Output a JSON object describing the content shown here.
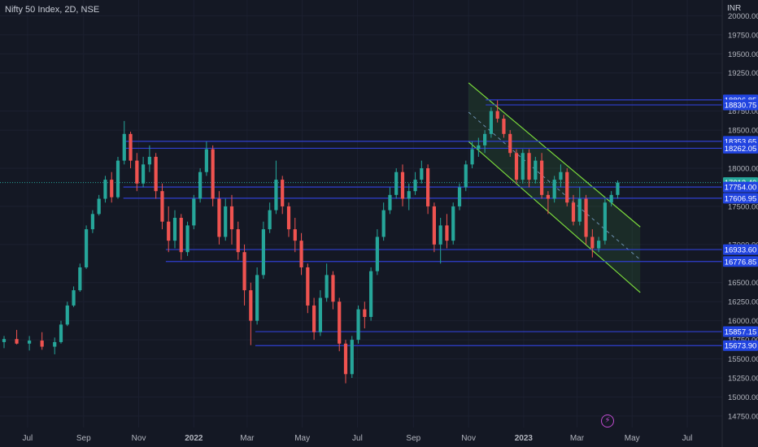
{
  "header": {
    "title": "Nifty 50 Index, 2D, NSE",
    "currency": "INR"
  },
  "icons": {
    "lightning": "lightning-icon"
  },
  "colors": {
    "background": "#141824",
    "up": "#26a69a",
    "down": "#ef5350",
    "level_line": "#2f3fd0",
    "label_bg": "#2144e0",
    "channel": "#7bdc3c",
    "current_price_bg": "#26a69a"
  },
  "chart_data": {
    "type": "candlestick",
    "title": "Nifty 50 Index, 2D, NSE",
    "y_unit": "INR",
    "ylim": [
      14600,
      20100
    ],
    "y_ticks": [
      {
        "value": 20000,
        "label": "20000.00"
      },
      {
        "value": 19750,
        "label": "19750.00"
      },
      {
        "value": 19500,
        "label": "19500.00"
      },
      {
        "value": 19250,
        "label": "19250.00"
      },
      {
        "value": 18750,
        "label": "18750.00"
      },
      {
        "value": 18500,
        "label": "18500.00"
      },
      {
        "value": 18000,
        "label": "18000.00"
      },
      {
        "value": 17500,
        "label": "17500.00"
      },
      {
        "value": 17000,
        "label": "17000.00"
      },
      {
        "value": 16500,
        "label": "16500.00"
      },
      {
        "value": 16250,
        "label": "16250.00"
      },
      {
        "value": 16000,
        "label": "16000.00"
      },
      {
        "value": 15750,
        "label": "15750.00"
      },
      {
        "value": 15500,
        "label": "15500.00"
      },
      {
        "value": 15250,
        "label": "15250.00"
      },
      {
        "value": 15000,
        "label": "15000.00"
      },
      {
        "value": 14750,
        "label": "14750.00"
      }
    ],
    "x_ticks": [
      {
        "date": "2021-07-01",
        "label": "Jul",
        "bold": false
      },
      {
        "date": "2021-09-01",
        "label": "Sep",
        "bold": false
      },
      {
        "date": "2021-11-01",
        "label": "Nov",
        "bold": false
      },
      {
        "date": "2022-01-01",
        "label": "2022",
        "bold": true
      },
      {
        "date": "2022-03-01",
        "label": "Mar",
        "bold": false
      },
      {
        "date": "2022-05-01",
        "label": "May",
        "bold": false
      },
      {
        "date": "2022-07-01",
        "label": "Jul",
        "bold": false
      },
      {
        "date": "2022-09-01",
        "label": "Sep",
        "bold": false
      },
      {
        "date": "2022-11-01",
        "label": "Nov",
        "bold": false
      },
      {
        "date": "2023-01-01",
        "label": "2023",
        "bold": true
      },
      {
        "date": "2023-03-01",
        "label": "Mar",
        "bold": false
      },
      {
        "date": "2023-05-01",
        "label": "May",
        "bold": false
      },
      {
        "date": "2023-07-01",
        "label": "Jul",
        "bold": false
      }
    ],
    "price_levels": [
      {
        "value": 18896.85,
        "label": "18896.85",
        "from": "2022-11-20",
        "style": "level"
      },
      {
        "value": 18830.75,
        "label": "18830.75",
        "from": "2022-11-20",
        "style": "level"
      },
      {
        "value": 18353.65,
        "label": "18353.65",
        "from": "2021-10-15",
        "style": "level"
      },
      {
        "value": 18262.05,
        "label": "18262.05",
        "from": "2021-10-15",
        "style": "level"
      },
      {
        "value": 17812.4,
        "label": "17812.40",
        "from": "2021-06-10",
        "style": "current"
      },
      {
        "value": 17754.0,
        "label": "17754.00",
        "from": "2021-10-15",
        "style": "level"
      },
      {
        "value": 17606.95,
        "label": "17606.95",
        "from": "2021-10-15",
        "style": "level"
      },
      {
        "value": 16933.6,
        "label": "16933.60",
        "from": "2021-12-01",
        "style": "level"
      },
      {
        "value": 16776.85,
        "label": "16776.85",
        "from": "2021-12-01",
        "style": "level"
      },
      {
        "value": 15857.15,
        "label": "15857.15",
        "from": "2022-03-10",
        "style": "level"
      },
      {
        "value": 15673.9,
        "label": "15673.90",
        "from": "2022-03-10",
        "style": "level"
      }
    ],
    "channel": {
      "upper": [
        {
          "date": "2022-11-01",
          "price": 19120
        },
        {
          "date": "2023-05-10",
          "price": 17230
        }
      ],
      "lower": [
        {
          "date": "2022-11-01",
          "price": 18350
        },
        {
          "date": "2023-05-10",
          "price": 16370
        }
      ],
      "mid": [
        {
          "date": "2022-11-01",
          "price": 18735
        },
        {
          "date": "2023-05-10",
          "price": 16800
        }
      ]
    },
    "series": [
      {
        "date": "2021-06-05",
        "o": 15720,
        "h": 15800,
        "l": 15640,
        "c": 15760
      },
      {
        "date": "2021-06-19",
        "o": 15760,
        "h": 15880,
        "l": 15690,
        "c": 15700
      },
      {
        "date": "2021-07-03",
        "o": 15700,
        "h": 15800,
        "l": 15610,
        "c": 15740
      },
      {
        "date": "2021-07-17",
        "o": 15740,
        "h": 15850,
        "l": 15620,
        "c": 15660
      },
      {
        "date": "2021-07-31",
        "o": 15660,
        "h": 15780,
        "l": 15560,
        "c": 15720
      },
      {
        "date": "2021-08-07",
        "o": 15720,
        "h": 16000,
        "l": 15700,
        "c": 15950
      },
      {
        "date": "2021-08-14",
        "o": 15950,
        "h": 16250,
        "l": 15930,
        "c": 16200
      },
      {
        "date": "2021-08-21",
        "o": 16200,
        "h": 16450,
        "l": 16180,
        "c": 16400
      },
      {
        "date": "2021-08-28",
        "o": 16400,
        "h": 16750,
        "l": 16380,
        "c": 16700
      },
      {
        "date": "2021-09-04",
        "o": 16700,
        "h": 17250,
        "l": 16680,
        "c": 17200
      },
      {
        "date": "2021-09-11",
        "o": 17200,
        "h": 17450,
        "l": 17150,
        "c": 17400
      },
      {
        "date": "2021-09-18",
        "o": 17400,
        "h": 17650,
        "l": 17380,
        "c": 17600
      },
      {
        "date": "2021-09-25",
        "o": 17600,
        "h": 17900,
        "l": 17550,
        "c": 17850
      },
      {
        "date": "2021-10-02",
        "o": 17850,
        "h": 17950,
        "l": 17550,
        "c": 17620
      },
      {
        "date": "2021-10-09",
        "o": 17620,
        "h": 18150,
        "l": 17600,
        "c": 18100
      },
      {
        "date": "2021-10-16",
        "o": 18100,
        "h": 18620,
        "l": 18050,
        "c": 18450
      },
      {
        "date": "2021-10-23",
        "o": 18450,
        "h": 18480,
        "l": 18000,
        "c": 18100
      },
      {
        "date": "2021-10-30",
        "o": 18100,
        "h": 18200,
        "l": 17700,
        "c": 17800
      },
      {
        "date": "2021-11-06",
        "o": 17800,
        "h": 18150,
        "l": 17750,
        "c": 18050
      },
      {
        "date": "2021-11-13",
        "o": 18050,
        "h": 18300,
        "l": 17950,
        "c": 18150
      },
      {
        "date": "2021-11-20",
        "o": 18150,
        "h": 18200,
        "l": 17600,
        "c": 17700
      },
      {
        "date": "2021-11-27",
        "o": 17700,
        "h": 17800,
        "l": 17200,
        "c": 17300
      },
      {
        "date": "2021-12-04",
        "o": 17300,
        "h": 17500,
        "l": 16900,
        "c": 17050
      },
      {
        "date": "2021-12-11",
        "o": 17050,
        "h": 17450,
        "l": 16950,
        "c": 17350
      },
      {
        "date": "2021-12-18",
        "o": 17350,
        "h": 17400,
        "l": 16800,
        "c": 16900
      },
      {
        "date": "2021-12-25",
        "o": 16900,
        "h": 17300,
        "l": 16850,
        "c": 17250
      },
      {
        "date": "2022-01-01",
        "o": 17250,
        "h": 17650,
        "l": 17200,
        "c": 17600
      },
      {
        "date": "2022-01-08",
        "o": 17600,
        "h": 18000,
        "l": 17550,
        "c": 17950
      },
      {
        "date": "2022-01-15",
        "o": 17950,
        "h": 18350,
        "l": 17900,
        "c": 18250
      },
      {
        "date": "2022-01-22",
        "o": 18250,
        "h": 18300,
        "l": 17500,
        "c": 17600
      },
      {
        "date": "2022-01-29",
        "o": 17600,
        "h": 17700,
        "l": 17000,
        "c": 17100
      },
      {
        "date": "2022-02-05",
        "o": 17100,
        "h": 17600,
        "l": 17050,
        "c": 17500
      },
      {
        "date": "2022-02-12",
        "o": 17500,
        "h": 17650,
        "l": 17000,
        "c": 17200
      },
      {
        "date": "2022-02-19",
        "o": 17200,
        "h": 17300,
        "l": 16800,
        "c": 16900
      },
      {
        "date": "2022-02-26",
        "o": 16900,
        "h": 17000,
        "l": 16200,
        "c": 16400
      },
      {
        "date": "2022-03-05",
        "o": 16400,
        "h": 16500,
        "l": 15680,
        "c": 16000
      },
      {
        "date": "2022-03-12",
        "o": 16000,
        "h": 16700,
        "l": 15950,
        "c": 16600
      },
      {
        "date": "2022-03-19",
        "o": 16600,
        "h": 17300,
        "l": 16550,
        "c": 17200
      },
      {
        "date": "2022-03-26",
        "o": 17200,
        "h": 17550,
        "l": 17150,
        "c": 17450
      },
      {
        "date": "2022-04-02",
        "o": 17450,
        "h": 18100,
        "l": 17400,
        "c": 17850
      },
      {
        "date": "2022-04-09",
        "o": 17850,
        "h": 17900,
        "l": 17400,
        "c": 17500
      },
      {
        "date": "2022-04-16",
        "o": 17500,
        "h": 17550,
        "l": 17100,
        "c": 17200
      },
      {
        "date": "2022-04-23",
        "o": 17200,
        "h": 17350,
        "l": 16900,
        "c": 17050
      },
      {
        "date": "2022-04-30",
        "o": 17050,
        "h": 17150,
        "l": 16600,
        "c": 16700
      },
      {
        "date": "2022-05-07",
        "o": 16700,
        "h": 16750,
        "l": 16100,
        "c": 16200
      },
      {
        "date": "2022-05-14",
        "o": 16200,
        "h": 16300,
        "l": 15750,
        "c": 15850
      },
      {
        "date": "2022-05-21",
        "o": 15850,
        "h": 16400,
        "l": 15800,
        "c": 16300
      },
      {
        "date": "2022-05-28",
        "o": 16300,
        "h": 16750,
        "l": 16250,
        "c": 16600
      },
      {
        "date": "2022-06-04",
        "o": 16600,
        "h": 16650,
        "l": 16150,
        "c": 16250
      },
      {
        "date": "2022-06-11",
        "o": 16250,
        "h": 16300,
        "l": 15600,
        "c": 15700
      },
      {
        "date": "2022-06-18",
        "o": 15700,
        "h": 15750,
        "l": 15180,
        "c": 15300
      },
      {
        "date": "2022-06-25",
        "o": 15300,
        "h": 15800,
        "l": 15250,
        "c": 15750
      },
      {
        "date": "2022-07-02",
        "o": 15750,
        "h": 16200,
        "l": 15700,
        "c": 16150
      },
      {
        "date": "2022-07-09",
        "o": 16150,
        "h": 16250,
        "l": 15900,
        "c": 16050
      },
      {
        "date": "2022-07-16",
        "o": 16050,
        "h": 16700,
        "l": 16000,
        "c": 16650
      },
      {
        "date": "2022-07-23",
        "o": 16650,
        "h": 17200,
        "l": 16600,
        "c": 17100
      },
      {
        "date": "2022-07-30",
        "o": 17100,
        "h": 17550,
        "l": 17050,
        "c": 17450
      },
      {
        "date": "2022-08-06",
        "o": 17450,
        "h": 17750,
        "l": 17400,
        "c": 17650
      },
      {
        "date": "2022-08-13",
        "o": 17650,
        "h": 18000,
        "l": 17600,
        "c": 17950
      },
      {
        "date": "2022-08-20",
        "o": 17950,
        "h": 18050,
        "l": 17500,
        "c": 17600
      },
      {
        "date": "2022-08-27",
        "o": 17600,
        "h": 17800,
        "l": 17450,
        "c": 17700
      },
      {
        "date": "2022-09-03",
        "o": 17700,
        "h": 17950,
        "l": 17650,
        "c": 17850
      },
      {
        "date": "2022-09-10",
        "o": 17850,
        "h": 18100,
        "l": 17800,
        "c": 18000
      },
      {
        "date": "2022-09-17",
        "o": 18000,
        "h": 18050,
        "l": 17400,
        "c": 17500
      },
      {
        "date": "2022-09-24",
        "o": 17500,
        "h": 17550,
        "l": 16900,
        "c": 17000
      },
      {
        "date": "2022-10-01",
        "o": 17000,
        "h": 17350,
        "l": 16750,
        "c": 17250
      },
      {
        "date": "2022-10-08",
        "o": 17250,
        "h": 17400,
        "l": 16950,
        "c": 17050
      },
      {
        "date": "2022-10-15",
        "o": 17050,
        "h": 17550,
        "l": 17000,
        "c": 17500
      },
      {
        "date": "2022-10-22",
        "o": 17500,
        "h": 17800,
        "l": 17450,
        "c": 17750
      },
      {
        "date": "2022-10-29",
        "o": 17750,
        "h": 18100,
        "l": 17700,
        "c": 18050
      },
      {
        "date": "2022-11-05",
        "o": 18050,
        "h": 18350,
        "l": 18000,
        "c": 18250
      },
      {
        "date": "2022-11-12",
        "o": 18250,
        "h": 18400,
        "l": 18150,
        "c": 18300
      },
      {
        "date": "2022-11-19",
        "o": 18300,
        "h": 18500,
        "l": 18200,
        "c": 18450
      },
      {
        "date": "2022-11-26",
        "o": 18450,
        "h": 18800,
        "l": 18400,
        "c": 18750
      },
      {
        "date": "2022-12-03",
        "o": 18750,
        "h": 18890,
        "l": 18600,
        "c": 18650
      },
      {
        "date": "2022-12-10",
        "o": 18650,
        "h": 18700,
        "l": 18400,
        "c": 18450
      },
      {
        "date": "2022-12-17",
        "o": 18450,
        "h": 18500,
        "l": 18150,
        "c": 18200
      },
      {
        "date": "2022-12-24",
        "o": 18200,
        "h": 18250,
        "l": 17800,
        "c": 17850
      },
      {
        "date": "2022-12-31",
        "o": 17850,
        "h": 18250,
        "l": 17800,
        "c": 18200
      },
      {
        "date": "2023-01-07",
        "o": 18200,
        "h": 18250,
        "l": 17750,
        "c": 17850
      },
      {
        "date": "2023-01-14",
        "o": 17850,
        "h": 18150,
        "l": 17800,
        "c": 18100
      },
      {
        "date": "2023-01-21",
        "o": 18100,
        "h": 18200,
        "l": 17600,
        "c": 17650
      },
      {
        "date": "2023-01-28",
        "o": 17650,
        "h": 17700,
        "l": 17400,
        "c": 17600
      },
      {
        "date": "2023-02-04",
        "o": 17600,
        "h": 17900,
        "l": 17550,
        "c": 17850
      },
      {
        "date": "2023-02-11",
        "o": 17850,
        "h": 18050,
        "l": 17750,
        "c": 17950
      },
      {
        "date": "2023-02-18",
        "o": 17950,
        "h": 18000,
        "l": 17500,
        "c": 17550
      },
      {
        "date": "2023-02-25",
        "o": 17550,
        "h": 17650,
        "l": 17250,
        "c": 17300
      },
      {
        "date": "2023-03-04",
        "o": 17300,
        "h": 17750,
        "l": 17250,
        "c": 17600
      },
      {
        "date": "2023-03-11",
        "o": 17600,
        "h": 17650,
        "l": 17000,
        "c": 17100
      },
      {
        "date": "2023-03-18",
        "o": 17100,
        "h": 17200,
        "l": 16830,
        "c": 16950
      },
      {
        "date": "2023-03-25",
        "o": 16950,
        "h": 17100,
        "l": 16900,
        "c": 17050
      },
      {
        "date": "2023-04-01",
        "o": 17050,
        "h": 17600,
        "l": 17000,
        "c": 17550
      },
      {
        "date": "2023-04-08",
        "o": 17550,
        "h": 17700,
        "l": 17500,
        "c": 17650
      },
      {
        "date": "2023-04-15",
        "o": 17650,
        "h": 17840,
        "l": 17600,
        "c": 17812.4
      }
    ]
  }
}
